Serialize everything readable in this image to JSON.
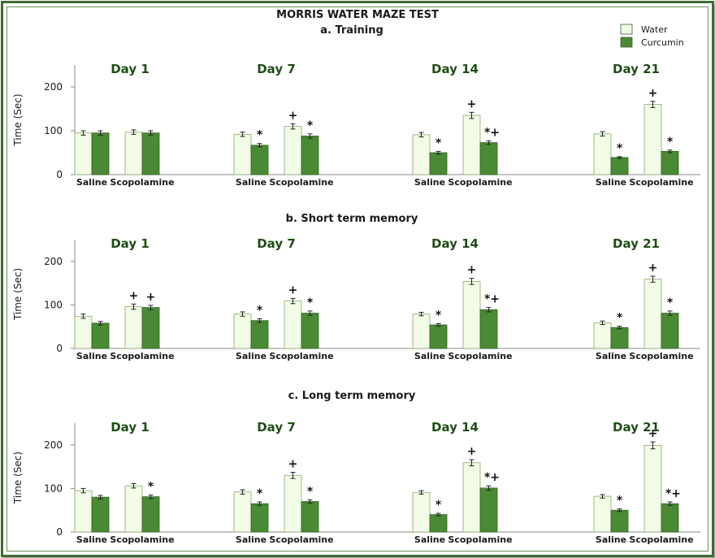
{
  "title": "MORRIS WATER MAZE TEST",
  "legend": [
    {
      "name": "Water",
      "color": "#f2fbe6"
    },
    {
      "name": "Curcumin",
      "color": "#4a8a34"
    }
  ],
  "chart_data": [
    {
      "type": "bar",
      "title": "a. Training",
      "ylabel": "Time (Sec)",
      "ylim": [
        0,
        250
      ],
      "yticks": [
        0,
        100,
        200
      ],
      "days": [
        "Day 1",
        "Day 7",
        "Day 14",
        "Day 21"
      ],
      "categories": [
        "Saline",
        "Scopolamine"
      ],
      "series": [
        {
          "name": "Water",
          "values": [
            [
              95,
              97
            ],
            [
              92,
              110
            ],
            [
              91,
              135
            ],
            [
              93,
              160
            ]
          ],
          "errors": [
            [
              5,
              5
            ],
            [
              5,
              6
            ],
            [
              5,
              7
            ],
            [
              5,
              7
            ]
          ]
        },
        {
          "name": "Curcumin",
          "values": [
            [
              95,
              95
            ],
            [
              67,
              88
            ],
            [
              50,
              73
            ],
            [
              39,
              53
            ]
          ],
          "errors": [
            [
              5,
              5
            ],
            [
              4,
              5
            ],
            [
              3,
              4
            ],
            [
              2,
              3
            ]
          ]
        }
      ],
      "annotations": [
        {
          "day": 1,
          "category": 0,
          "series": 1,
          "text": "*"
        },
        {
          "day": 1,
          "category": 1,
          "series": 0,
          "text": "+"
        },
        {
          "day": 1,
          "category": 1,
          "series": 1,
          "text": "*"
        },
        {
          "day": 2,
          "category": 0,
          "series": 1,
          "text": "*"
        },
        {
          "day": 2,
          "category": 1,
          "series": 0,
          "text": "+"
        },
        {
          "day": 2,
          "category": 1,
          "series": 1,
          "text": "*+"
        },
        {
          "day": 3,
          "category": 0,
          "series": 1,
          "text": "*"
        },
        {
          "day": 3,
          "category": 1,
          "series": 0,
          "text": "+"
        },
        {
          "day": 3,
          "category": 1,
          "series": 1,
          "text": "*"
        }
      ]
    },
    {
      "type": "bar",
      "title": "b. Short term memory",
      "ylabel": "Time (Sec)",
      "ylim": [
        0,
        250
      ],
      "yticks": [
        0,
        100,
        200
      ],
      "days": [
        "Day 1",
        "Day 7",
        "Day 14",
        "Day 21"
      ],
      "categories": [
        "Saline",
        "Scopolamine"
      ],
      "series": [
        {
          "name": "Water",
          "values": [
            [
              74,
              96
            ],
            [
              79,
              109
            ],
            [
              79,
              154
            ],
            [
              59,
              159
            ]
          ],
          "errors": [
            [
              5,
              6
            ],
            [
              5,
              6
            ],
            [
              4,
              7
            ],
            [
              4,
              7
            ]
          ]
        },
        {
          "name": "Curcumin",
          "values": [
            [
              58,
              94
            ],
            [
              64,
              81
            ],
            [
              54,
              89
            ],
            [
              48,
              81
            ]
          ],
          "errors": [
            [
              4,
              5
            ],
            [
              4,
              5
            ],
            [
              3,
              5
            ],
            [
              3,
              5
            ]
          ]
        }
      ],
      "annotations": [
        {
          "day": 0,
          "category": 1,
          "series": 0,
          "text": "+"
        },
        {
          "day": 0,
          "category": 1,
          "series": 1,
          "text": "+"
        },
        {
          "day": 1,
          "category": 0,
          "series": 1,
          "text": "*"
        },
        {
          "day": 1,
          "category": 1,
          "series": 0,
          "text": "+"
        },
        {
          "day": 1,
          "category": 1,
          "series": 1,
          "text": "*"
        },
        {
          "day": 2,
          "category": 0,
          "series": 1,
          "text": "*"
        },
        {
          "day": 2,
          "category": 1,
          "series": 0,
          "text": "+"
        },
        {
          "day": 2,
          "category": 1,
          "series": 1,
          "text": "*+"
        },
        {
          "day": 3,
          "category": 0,
          "series": 1,
          "text": "*"
        },
        {
          "day": 3,
          "category": 1,
          "series": 0,
          "text": "+"
        },
        {
          "day": 3,
          "category": 1,
          "series": 1,
          "text": "*"
        }
      ]
    },
    {
      "type": "bar",
      "title": "c. Long term memory",
      "ylabel": "Time (Sec)",
      "ylim": [
        0,
        250
      ],
      "yticks": [
        0,
        100,
        200
      ],
      "days": [
        "Day 1",
        "Day 7",
        "Day 14",
        "Day 21"
      ],
      "categories": [
        "Saline",
        "Scopolamine"
      ],
      "series": [
        {
          "name": "Water",
          "values": [
            [
              95,
              106
            ],
            [
              92,
              130
            ],
            [
              91,
              159
            ],
            [
              82,
              199
            ]
          ],
          "errors": [
            [
              5,
              5
            ],
            [
              5,
              7
            ],
            [
              4,
              7
            ],
            [
              4,
              8
            ]
          ]
        },
        {
          "name": "Curcumin",
          "values": [
            [
              80,
              81
            ],
            [
              65,
              70
            ],
            [
              40,
              101
            ],
            [
              50,
              65
            ]
          ],
          "errors": [
            [
              4,
              4
            ],
            [
              4,
              4
            ],
            [
              3,
              5
            ],
            [
              3,
              4
            ]
          ]
        }
      ],
      "annotations": [
        {
          "day": 0,
          "category": 1,
          "series": 1,
          "text": "*"
        },
        {
          "day": 1,
          "category": 0,
          "series": 1,
          "text": "*"
        },
        {
          "day": 1,
          "category": 1,
          "series": 0,
          "text": "+"
        },
        {
          "day": 1,
          "category": 1,
          "series": 1,
          "text": "*"
        },
        {
          "day": 2,
          "category": 0,
          "series": 1,
          "text": "*"
        },
        {
          "day": 2,
          "category": 1,
          "series": 0,
          "text": "+"
        },
        {
          "day": 2,
          "category": 1,
          "series": 1,
          "text": "*+"
        },
        {
          "day": 3,
          "category": 0,
          "series": 1,
          "text": "*"
        },
        {
          "day": 3,
          "category": 1,
          "series": 0,
          "text": "+"
        },
        {
          "day": 3,
          "category": 1,
          "series": 1,
          "text": "*+"
        }
      ]
    }
  ]
}
